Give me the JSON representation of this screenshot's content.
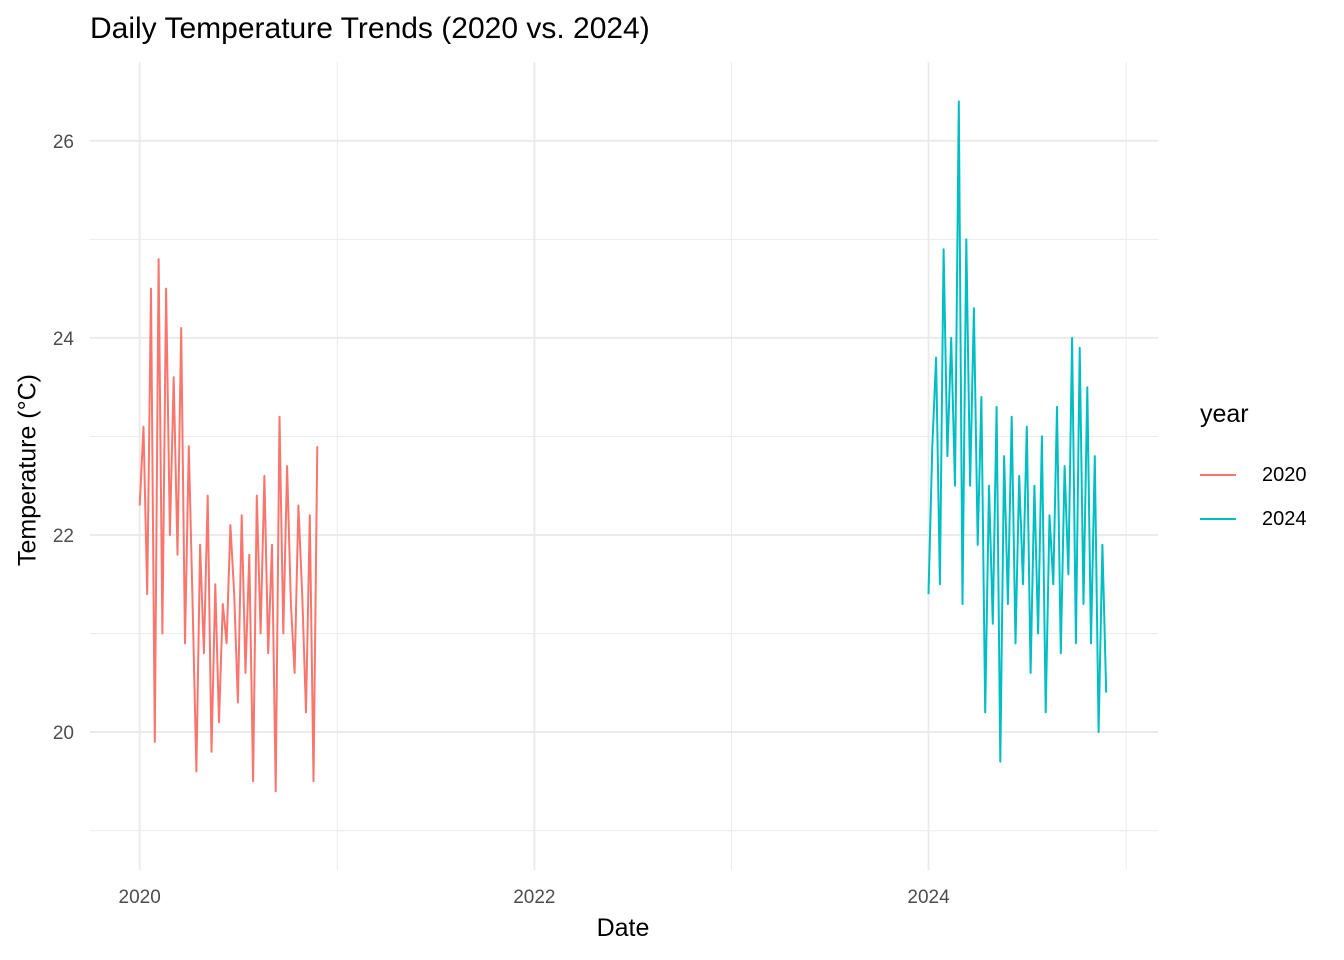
{
  "chart_data": {
    "type": "line",
    "title": "Daily Temperature Trends (2020 vs. 2024)",
    "xlabel": "Date",
    "ylabel": "Temperature (°C)",
    "x_ticks": [
      "2020",
      "2022",
      "2024"
    ],
    "y_ticks": [
      20,
      22,
      24,
      26
    ],
    "xlim": [
      "2019-10-01",
      "2025-03-01"
    ],
    "ylim": [
      18.6,
      26.8
    ],
    "grid": true,
    "legend": {
      "title": "year",
      "position": "right"
    },
    "series": [
      {
        "name": "2020",
        "color": "#F8766D",
        "x": [
          "2020-01-01",
          "2020-01-08",
          "2020-01-15",
          "2020-01-22",
          "2020-01-29",
          "2020-02-05",
          "2020-02-12",
          "2020-02-19",
          "2020-02-26",
          "2020-03-04",
          "2020-03-11",
          "2020-03-18",
          "2020-03-25",
          "2020-04-01",
          "2020-04-08",
          "2020-04-15",
          "2020-04-22",
          "2020-04-29",
          "2020-05-06",
          "2020-05-13",
          "2020-05-20",
          "2020-05-27",
          "2020-06-03",
          "2020-06-10",
          "2020-06-17",
          "2020-06-24",
          "2020-07-01",
          "2020-07-08",
          "2020-07-15",
          "2020-07-22",
          "2020-07-29",
          "2020-08-05",
          "2020-08-12",
          "2020-08-19",
          "2020-08-26",
          "2020-09-02",
          "2020-09-09",
          "2020-09-16",
          "2020-09-23",
          "2020-09-30",
          "2020-10-07",
          "2020-10-14",
          "2020-10-21",
          "2020-10-28",
          "2020-11-04",
          "2020-11-11",
          "2020-11-18",
          "2020-11-25"
        ],
        "values": [
          22.3,
          23.1,
          21.4,
          24.5,
          19.9,
          24.8,
          21.0,
          24.5,
          22.0,
          23.6,
          21.8,
          24.1,
          20.9,
          22.9,
          21.3,
          19.6,
          21.9,
          20.8,
          22.4,
          19.8,
          21.5,
          20.1,
          21.3,
          20.9,
          22.1,
          21.4,
          20.3,
          22.2,
          20.6,
          21.8,
          19.5,
          22.4,
          21.0,
          22.6,
          20.8,
          21.9,
          19.4,
          23.2,
          21.0,
          22.7,
          21.3,
          20.6,
          22.3,
          21.4,
          20.2,
          22.2,
          19.5,
          22.9
        ]
      },
      {
        "name": "2024",
        "color": "#00BFC4",
        "x": [
          "2024-01-01",
          "2024-01-08",
          "2024-01-15",
          "2024-01-22",
          "2024-01-29",
          "2024-02-05",
          "2024-02-12",
          "2024-02-19",
          "2024-02-26",
          "2024-03-04",
          "2024-03-11",
          "2024-03-18",
          "2024-03-25",
          "2024-04-01",
          "2024-04-08",
          "2024-04-15",
          "2024-04-22",
          "2024-04-29",
          "2024-05-06",
          "2024-05-13",
          "2024-05-20",
          "2024-05-27",
          "2024-06-03",
          "2024-06-10",
          "2024-06-17",
          "2024-06-24",
          "2024-07-01",
          "2024-07-08",
          "2024-07-15",
          "2024-07-22",
          "2024-07-29",
          "2024-08-05",
          "2024-08-12",
          "2024-08-19",
          "2024-08-26",
          "2024-09-02",
          "2024-09-09",
          "2024-09-16",
          "2024-09-23",
          "2024-09-30",
          "2024-10-07",
          "2024-10-14",
          "2024-10-21",
          "2024-10-28",
          "2024-11-04",
          "2024-11-11",
          "2024-11-18",
          "2024-11-25"
        ],
        "values": [
          21.4,
          22.9,
          23.8,
          21.5,
          24.9,
          22.8,
          24.0,
          22.5,
          26.4,
          21.3,
          25.0,
          22.5,
          24.3,
          21.9,
          23.4,
          20.2,
          22.5,
          21.1,
          23.3,
          19.7,
          22.8,
          21.3,
          23.2,
          20.9,
          22.6,
          21.5,
          23.1,
          20.6,
          22.5,
          21.0,
          23.0,
          20.2,
          22.2,
          21.5,
          23.3,
          20.8,
          22.7,
          21.6,
          24.0,
          20.9,
          23.9,
          21.3,
          23.5,
          20.9,
          22.8,
          20.0,
          21.9,
          20.4
        ]
      }
    ]
  }
}
